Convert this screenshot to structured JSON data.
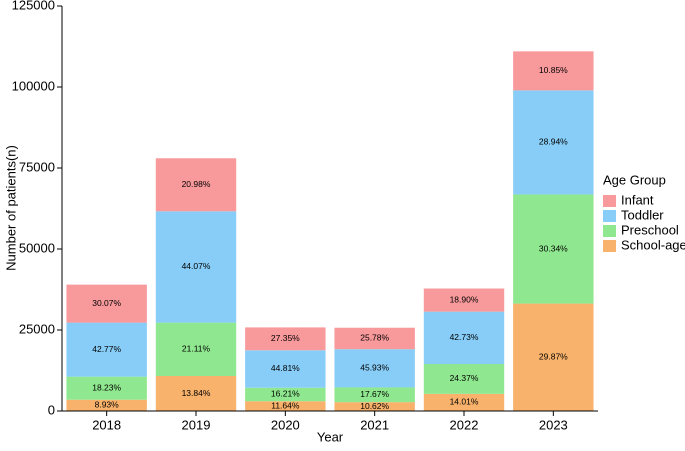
{
  "chart_data": {
    "type": "stacked_bar",
    "xlabel": "Year",
    "ylabel": "Number of patients(n)",
    "legend_title": "Age Group",
    "categories": [
      "2018",
      "2019",
      "2020",
      "2021",
      "2022",
      "2023"
    ],
    "series": [
      {
        "name": "Infant",
        "color": "#f8999b",
        "values": [
          11727,
          16364,
          7056,
          6625,
          7144,
          12044
        ],
        "percent_labels": [
          "30.07%",
          "20.98%",
          "27.35%",
          "25.78%",
          "18.90%",
          "10.85%"
        ]
      },
      {
        "name": "Toddler",
        "color": "#87cdf7",
        "values": [
          16680,
          34375,
          11561,
          11804,
          16152,
          32123
        ],
        "percent_labels": [
          "42.77%",
          "44.07%",
          "44.81%",
          "45.93%",
          "42.73%",
          "28.94%"
        ]
      },
      {
        "name": "Preschool",
        "color": "#8fe88f",
        "values": [
          7110,
          16466,
          4182,
          4541,
          9212,
          33677
        ],
        "percent_labels": [
          "18.23%",
          "21.11%",
          "16.21%",
          "17.67%",
          "24.37%",
          "30.34%"
        ]
      },
      {
        "name": "School-age",
        "color": "#f9b26b",
        "values": [
          3483,
          10795,
          3003,
          2729,
          5296,
          33156
        ],
        "percent_labels": [
          "8.93%",
          "13.84%",
          "11.64%",
          "10.62%",
          "14.01%",
          "29.87%"
        ]
      }
    ],
    "ylim": [
      0,
      125000
    ],
    "yticks": [
      0,
      25000,
      50000,
      75000,
      100000,
      125000
    ]
  }
}
